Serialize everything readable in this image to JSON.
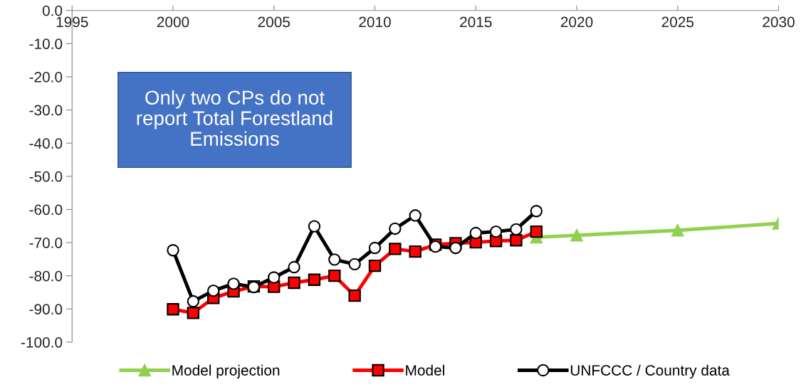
{
  "chart_data": {
    "type": "line",
    "annotations": [
      "Only two CPs do not\nreport Total Forestland\nEmissions"
    ],
    "series": [
      {
        "name": "Model projection",
        "color": "#92d050",
        "marker": "triangle",
        "x": [
          2018,
          2020,
          2025,
          2030
        ],
        "values": [
          -68.4,
          -67.8,
          -66.3,
          -64.2
        ]
      },
      {
        "name": "Model",
        "color": "#ff0000",
        "marker": "square",
        "x": [
          2000,
          2001,
          2002,
          2003,
          2004,
          2005,
          2006,
          2007,
          2008,
          2009,
          2010,
          2011,
          2012,
          2013,
          2014,
          2015,
          2016,
          2017,
          2018
        ],
        "values": [
          -90.1,
          -91.2,
          -86.7,
          -84.7,
          -83.2,
          -83.3,
          -82.1,
          -81.2,
          -80.0,
          -86.0,
          -77.0,
          -71.9,
          -72.7,
          -70.6,
          -70.2,
          -69.9,
          -69.5,
          -69.3,
          -66.7
        ]
      },
      {
        "name": "UNFCCC / Country data",
        "color": "#000000",
        "marker": "circle",
        "x": [
          2000,
          2001,
          2002,
          2003,
          2004,
          2005,
          2006,
          2007,
          2008,
          2009,
          2010,
          2011,
          2012,
          2013,
          2014,
          2015,
          2016,
          2017,
          2018
        ],
        "values": [
          -72.3,
          -87.7,
          -84.5,
          -82.4,
          -83.4,
          -80.5,
          -77.4,
          -65.1,
          -75.1,
          -76.5,
          -71.6,
          -65.8,
          -61.8,
          -71.2,
          -71.6,
          -67.1,
          -66.7,
          -66.0,
          -60.5
        ]
      }
    ],
    "xlim": [
      1995,
      2030
    ],
    "xticks": [
      1995,
      2000,
      2005,
      2010,
      2015,
      2020,
      2025,
      2030
    ],
    "ylim": [
      -100,
      0
    ],
    "yticks": [
      {
        "value": 0,
        "label": "0.0"
      },
      {
        "value": -10,
        "label": "-10.0"
      },
      {
        "value": -20,
        "label": "-20.0"
      },
      {
        "value": -30,
        "label": "-30.0"
      },
      {
        "value": -40,
        "label": "-40.0"
      },
      {
        "value": -50,
        "label": "-50.0"
      },
      {
        "value": -60,
        "label": "-60.0"
      },
      {
        "value": -70,
        "label": "-70.0"
      },
      {
        "value": -80,
        "label": "-80.0"
      },
      {
        "value": -90,
        "label": "-90.0"
      },
      {
        "value": -100,
        "label": "-100.0"
      }
    ],
    "grid": false,
    "legend": "bottom"
  }
}
